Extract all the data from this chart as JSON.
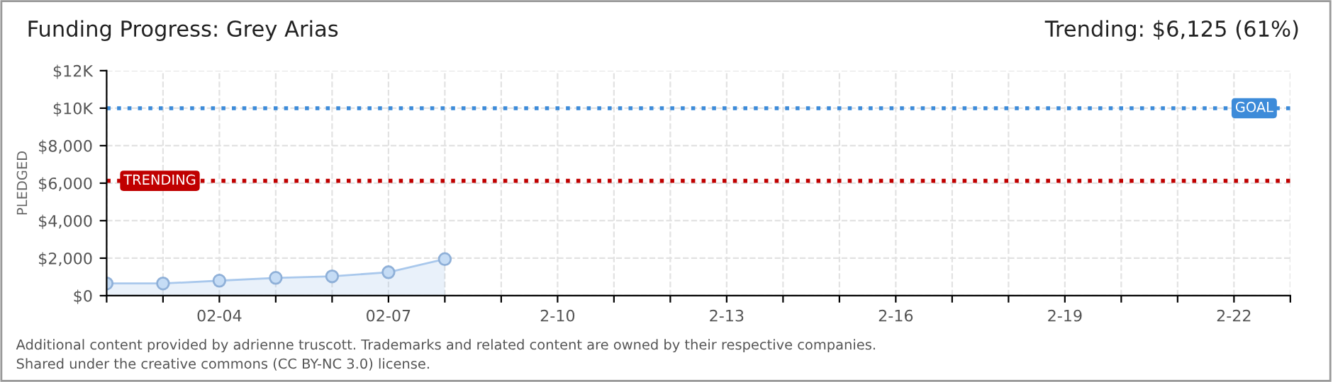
{
  "chart_data": {
    "type": "area",
    "title": "Funding Progress: Grey Arias",
    "subtitle": "Trending: $6,125 (61%)",
    "ylabel": "PLEDGED",
    "categories": [
      null,
      null,
      "02-04",
      null,
      null,
      "02-07",
      null,
      null,
      "2-10",
      null,
      null,
      "2-13",
      null,
      null,
      "2-16",
      null,
      null,
      "2-19",
      null,
      null,
      "2-22",
      null
    ],
    "series": [
      {
        "color": "#a9c8ec",
        "values": [
          650,
          650,
          800,
          950,
          1030,
          1250,
          1950,
          null,
          null,
          null,
          null,
          null,
          null,
          null,
          null,
          null,
          null,
          null,
          null,
          null,
          null,
          null
        ]
      }
    ],
    "ylim": [
      0,
      12000
    ],
    "yticks": [
      {
        "value": 0,
        "label": "$0"
      },
      {
        "value": 2000,
        "label": "$2,000"
      },
      {
        "value": 4000,
        "label": "$4,000"
      },
      {
        "value": 6000,
        "label": "$6,000"
      },
      {
        "value": 8000,
        "label": "$8,000"
      },
      {
        "value": 10000,
        "label": "$10K"
      },
      {
        "value": 12000,
        "label": "$12K"
      }
    ],
    "ref_lines": [
      {
        "axis": "y",
        "value": 10000,
        "label": "GOAL",
        "color": "#3d8bd9",
        "line_style": "dotted"
      },
      {
        "axis": "y",
        "value": 6125,
        "label": "TRENDING",
        "color": "#c00000",
        "line_style": "dotted"
      }
    ],
    "grid": true,
    "marker": "circle",
    "annotations": [
      "Additional content provided by adrienne truscott. Trademarks and related content are owned by their respective companies.",
      "Shared under the creative commons (CC BY-NC 3.0) license."
    ]
  }
}
